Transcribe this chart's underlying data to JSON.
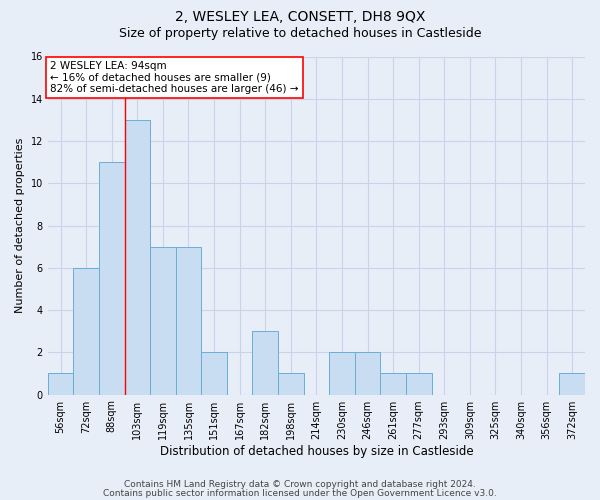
{
  "title_line1": "2, WESLEY LEA, CONSETT, DH8 9QX",
  "title_line2": "Size of property relative to detached houses in Castleside",
  "xlabel": "Distribution of detached houses by size in Castleside",
  "ylabel": "Number of detached properties",
  "categories": [
    "56sqm",
    "72sqm",
    "88sqm",
    "103sqm",
    "119sqm",
    "135sqm",
    "151sqm",
    "167sqm",
    "182sqm",
    "198sqm",
    "214sqm",
    "230sqm",
    "246sqm",
    "261sqm",
    "277sqm",
    "293sqm",
    "309sqm",
    "325sqm",
    "340sqm",
    "356sqm",
    "372sqm"
  ],
  "values": [
    1,
    6,
    11,
    13,
    7,
    7,
    2,
    0,
    3,
    1,
    0,
    2,
    2,
    1,
    1,
    0,
    0,
    0,
    0,
    0,
    1
  ],
  "bar_color": "#c9ddf2",
  "bar_edge_color": "#6aaed6",
  "grid_color": "#c8d4e8",
  "background_color": "#e8eef8",
  "ylim": [
    0,
    16
  ],
  "yticks": [
    0,
    2,
    4,
    6,
    8,
    10,
    12,
    14,
    16
  ],
  "property_line_x": 2.5,
  "annotation_text": "2 WESLEY LEA: 94sqm\n← 16% of detached houses are smaller (9)\n82% of semi-detached houses are larger (46) →",
  "annotation_box_color": "white",
  "annotation_box_edge": "red",
  "footer_line1": "Contains HM Land Registry data © Crown copyright and database right 2024.",
  "footer_line2": "Contains public sector information licensed under the Open Government Licence v3.0.",
  "title_fontsize": 10,
  "subtitle_fontsize": 9,
  "tick_fontsize": 7,
  "ylabel_fontsize": 8,
  "xlabel_fontsize": 8.5,
  "annotation_fontsize": 7.5,
  "footer_fontsize": 6.5
}
